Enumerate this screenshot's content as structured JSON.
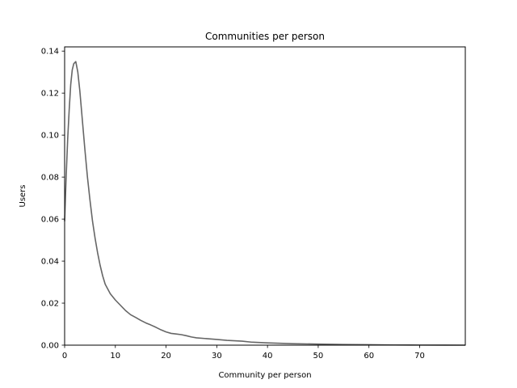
{
  "chart_data": {
    "type": "line",
    "title": "Communities per person",
    "xlabel": "Community per person",
    "ylabel": "Users",
    "xlim": [
      0,
      79
    ],
    "ylim": [
      0,
      0.142
    ],
    "x_ticks": [
      0,
      10,
      20,
      30,
      40,
      50,
      60,
      70
    ],
    "x_tick_labels": [
      "0",
      "10",
      "20",
      "30",
      "40",
      "50",
      "60",
      "70"
    ],
    "y_ticks": [
      0,
      0.02,
      0.04,
      0.06,
      0.08,
      0.1,
      0.12,
      0.14
    ],
    "y_tick_labels": [
      "0.00",
      "0.02",
      "0.04",
      "0.06",
      "0.08",
      "0.10",
      "0.12",
      "0.14"
    ],
    "grid": false,
    "series": [
      {
        "color": "#666666",
        "x": [
          0,
          0.3,
          0.6,
          0.9,
          1.2,
          1.5,
          1.8,
          2.2,
          2.6,
          3.0,
          3.5,
          4.0,
          4.5,
          5.0,
          5.5,
          6.0,
          6.5,
          7.0,
          7.5,
          8.0,
          9.0,
          10.0,
          11.0,
          12.0,
          13.0,
          14.0,
          15.0,
          16.0,
          17.0,
          18.0,
          19.0,
          20.0,
          21.0,
          22.0,
          23.0,
          24.0,
          25.0,
          26.0,
          28.0,
          30.0,
          32.0,
          35.0,
          37.0,
          40.0,
          45.0,
          50.0,
          55.0,
          60.0,
          65.0,
          70.0,
          75.0,
          79.0
        ],
        "y": [
          0.059,
          0.08,
          0.098,
          0.112,
          0.124,
          0.131,
          0.134,
          0.135,
          0.13,
          0.121,
          0.107,
          0.093,
          0.08,
          0.069,
          0.059,
          0.051,
          0.044,
          0.038,
          0.033,
          0.029,
          0.0245,
          0.0215,
          0.019,
          0.0165,
          0.0145,
          0.0132,
          0.0118,
          0.0106,
          0.0096,
          0.0085,
          0.0073,
          0.0063,
          0.0056,
          0.0053,
          0.005,
          0.0045,
          0.0039,
          0.0035,
          0.0031,
          0.0027,
          0.0023,
          0.0019,
          0.0014,
          0.0011,
          0.0007,
          0.0005,
          0.0003,
          0.0002,
          0.0001,
          5e-05,
          2e-05,
          0.0
        ]
      }
    ]
  }
}
